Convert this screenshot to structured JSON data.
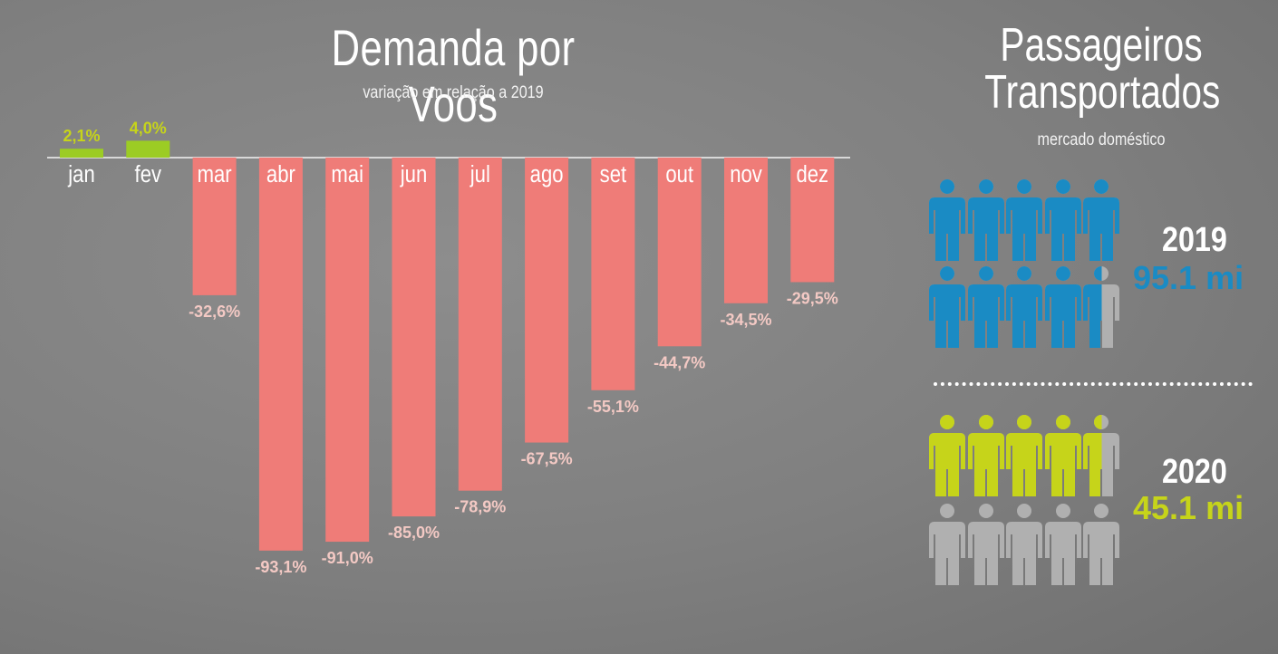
{
  "left": {
    "title": "Demanda por Voos",
    "subtitle": "variação em relação a 2019"
  },
  "right": {
    "title_line1": "Passageiros",
    "title_line2": "Transportados",
    "subtitle": "mercado doméstico",
    "groups": [
      {
        "year": "2019",
        "total": "95.1 mi",
        "value": 95.1,
        "color": "#1a8bc4"
      },
      {
        "year": "2020",
        "total": "45.1 mi",
        "value": 45.1,
        "color": "#c6d41a"
      }
    ],
    "icon": "person-icon",
    "inactive_color": "#b0b0b0"
  },
  "chart_data": {
    "type": "bar",
    "title": "Demanda por Voos",
    "subtitle": "variação em relação a 2019",
    "categories": [
      "jan",
      "fev",
      "mar",
      "abr",
      "mai",
      "jun",
      "jul",
      "ago",
      "set",
      "out",
      "nov",
      "dez"
    ],
    "values": [
      2.1,
      4.0,
      -32.6,
      -93.1,
      -91.0,
      -85.0,
      -78.9,
      -67.5,
      -55.1,
      -44.7,
      -34.5,
      -29.5
    ],
    "labels": [
      "2,1%",
      "4,0%",
      "-32,6%",
      "-93,1%",
      "-91,0%",
      "-85,0%",
      "-78,9%",
      "-67,5%",
      "-55,1%",
      "-44,7%",
      "-34,5%",
      "-29,5%"
    ],
    "ylim": [
      -100,
      5
    ],
    "positive_color": "#9ccc24",
    "negative_color": "#ef7c78",
    "grid": false,
    "legend": "none"
  }
}
